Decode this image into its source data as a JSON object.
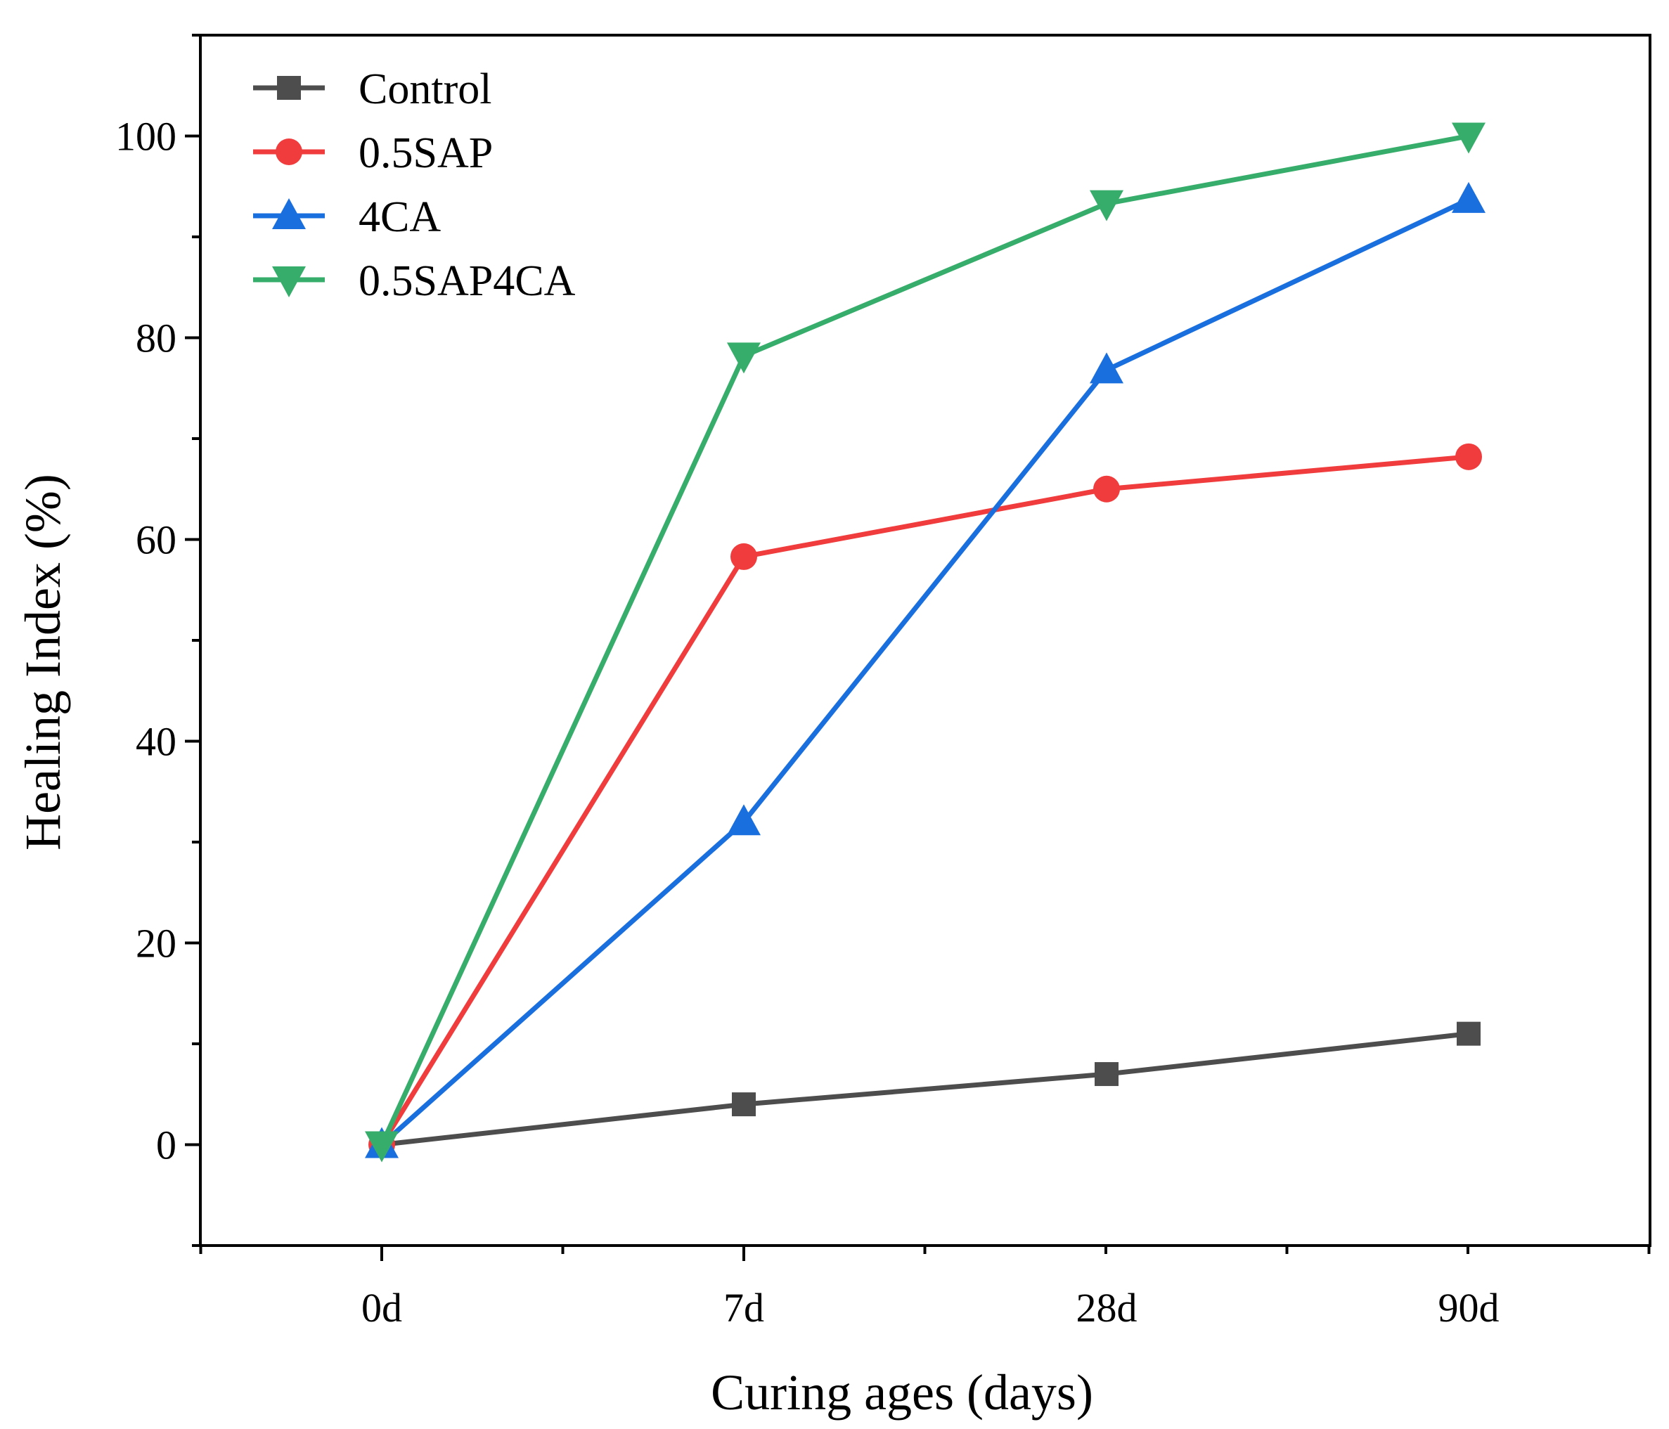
{
  "chart_data": {
    "type": "line",
    "title": "",
    "xlabel": "Curing ages (days)",
    "ylabel": "Healing Index (%)",
    "categories": [
      "0d",
      "7d",
      "28d",
      "90d"
    ],
    "ylim": [
      -10,
      110
    ],
    "yticks": [
      0,
      20,
      40,
      60,
      80,
      100
    ],
    "y_minor_step": 10,
    "legend_position": "top-left",
    "grid": false,
    "series": [
      {
        "name": "Control",
        "marker": "square",
        "color": "#4d4d4d",
        "values": [
          0,
          4,
          7,
          11
        ]
      },
      {
        "name": "0.5SAP",
        "marker": "circle",
        "color": "#f03c3c",
        "values": [
          0,
          58.3,
          65,
          68.2
        ]
      },
      {
        "name": "4CA",
        "marker": "triangle-up",
        "color": "#1a6fdf",
        "values": [
          0,
          32,
          76.8,
          93.7
        ]
      },
      {
        "name": "0.5SAP4CA",
        "marker": "triangle-down",
        "color": "#37ad6b",
        "values": [
          0,
          78.2,
          93.3,
          100
        ]
      }
    ]
  }
}
